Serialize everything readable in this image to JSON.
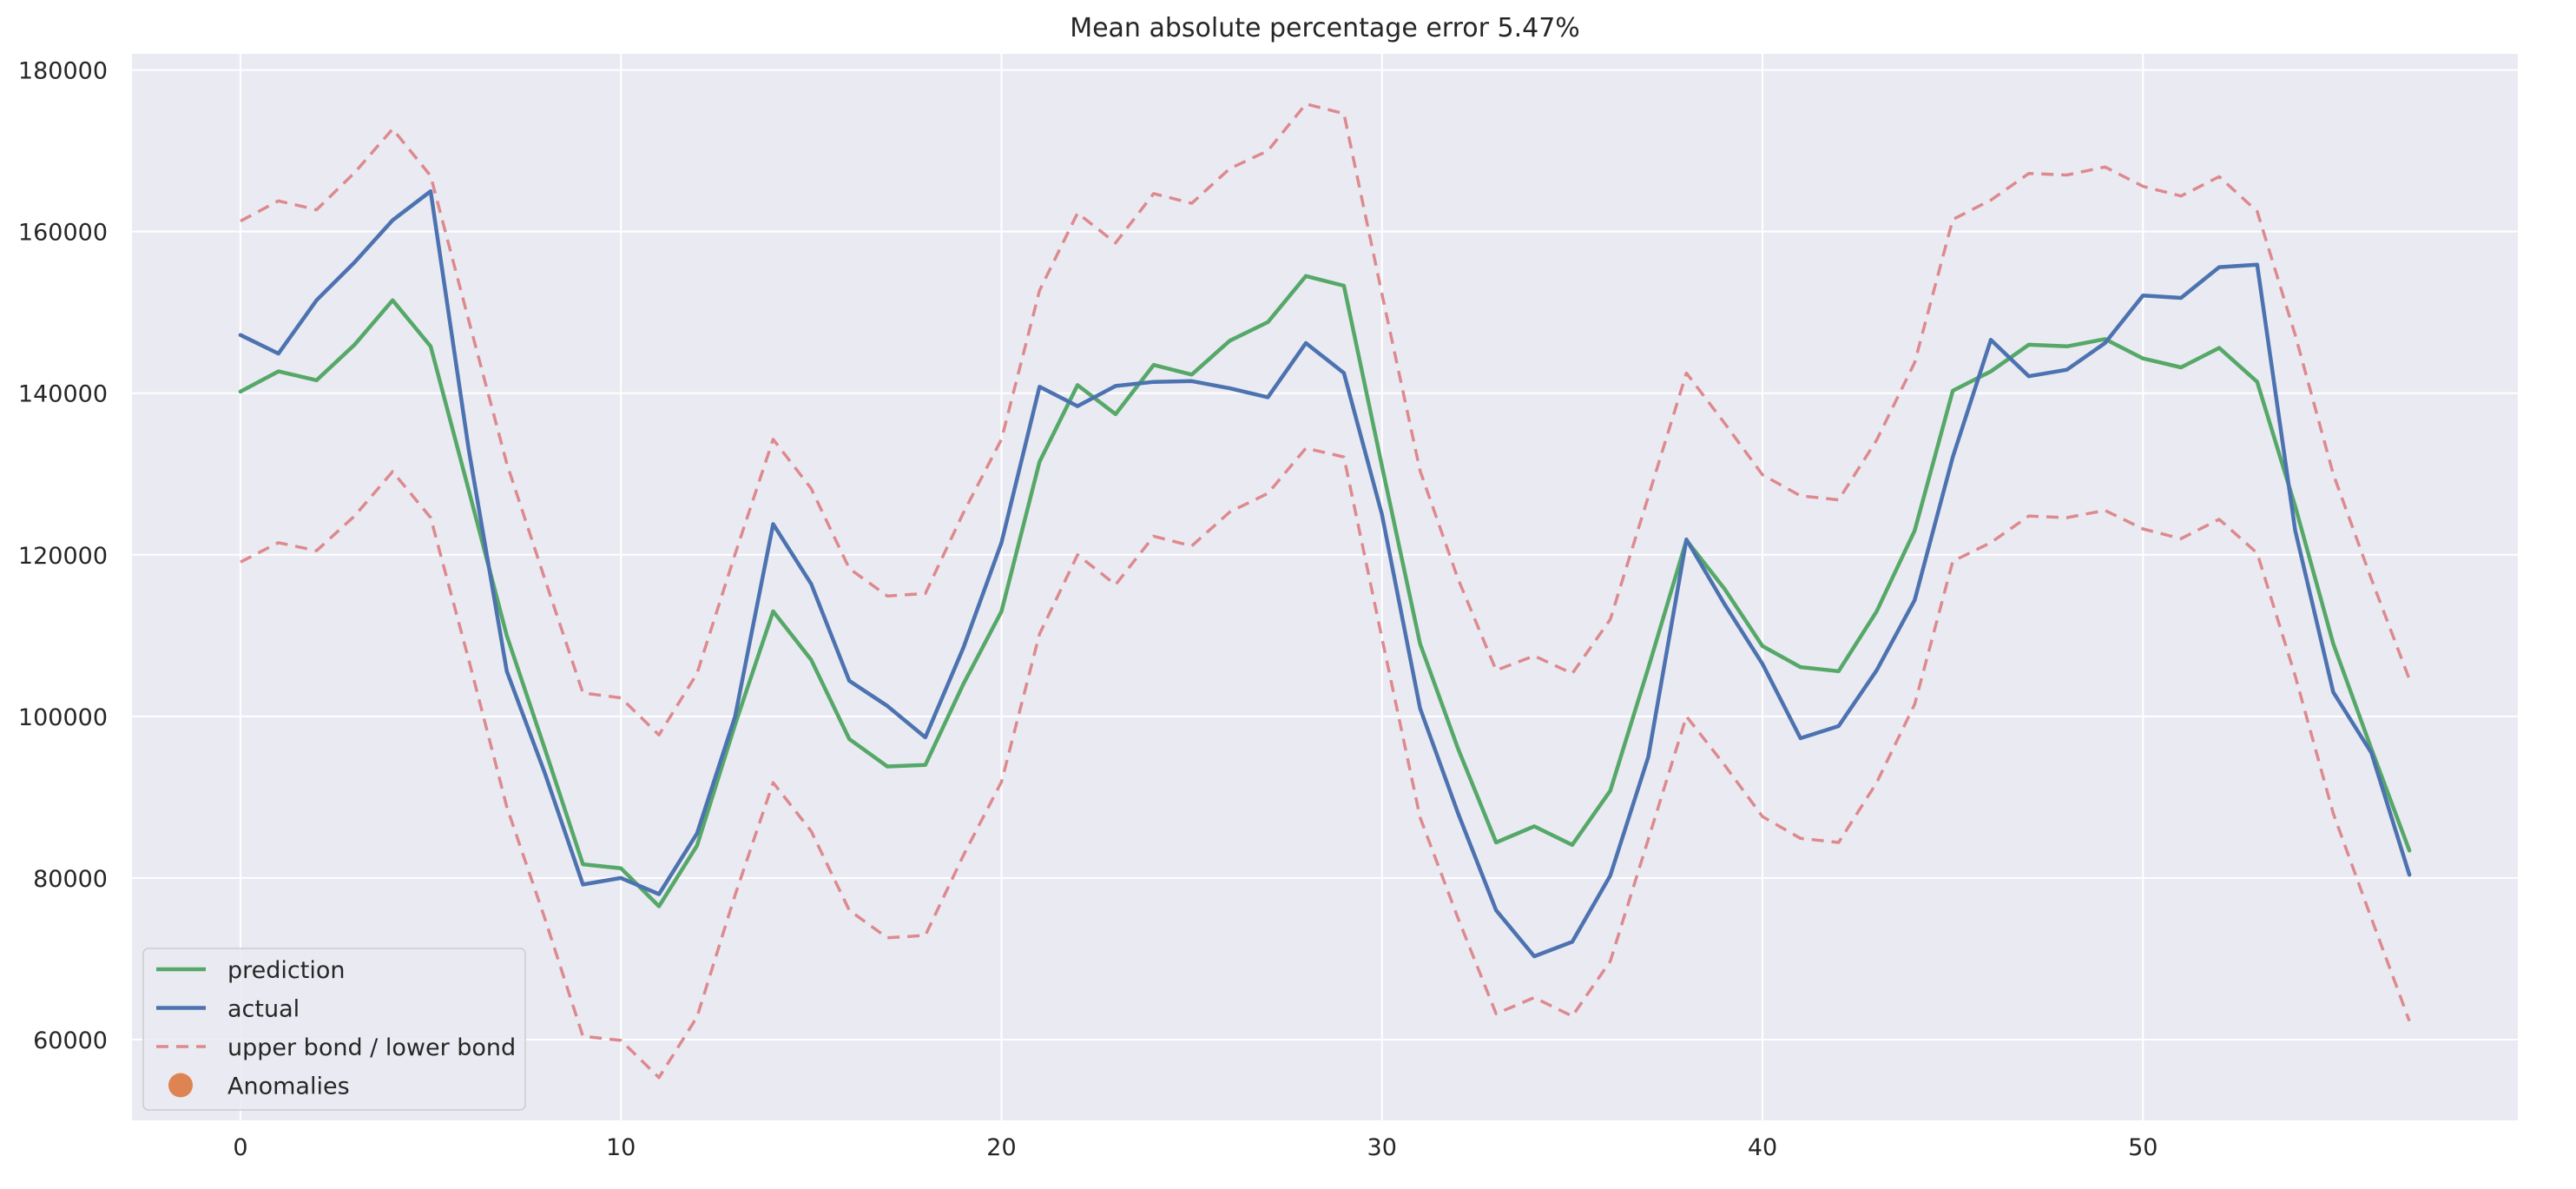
{
  "chart_data": {
    "type": "line",
    "title": "Mean absolute percentage error 5.47%",
    "xlabel": "",
    "ylabel": "",
    "xlim": [
      -2.85,
      59.85
    ],
    "ylim": [
      50000,
      182000
    ],
    "xticks": [
      0,
      10,
      20,
      30,
      40,
      50
    ],
    "yticks": [
      60000,
      80000,
      100000,
      120000,
      140000,
      160000,
      180000
    ],
    "grid": true,
    "legend_position": "lower-left",
    "x": [
      0,
      1,
      2,
      3,
      4,
      5,
      6,
      7,
      8,
      9,
      10,
      11,
      12,
      13,
      14,
      15,
      16,
      17,
      18,
      19,
      20,
      21,
      22,
      23,
      24,
      25,
      26,
      27,
      28,
      29,
      30,
      31,
      32,
      33,
      34,
      35,
      36,
      37,
      38,
      39,
      40,
      41,
      42,
      43,
      44,
      45,
      46,
      47,
      48,
      49,
      50,
      51,
      52,
      53,
      54,
      55,
      56,
      57
    ],
    "series": [
      {
        "name": "prediction",
        "color": "#55a868",
        "style": "solid",
        "values": [
          140200,
          142700,
          141600,
          146000,
          151500,
          145800,
          128000,
          110000,
          96000,
          81700,
          81200,
          76500,
          84000,
          99000,
          113000,
          107000,
          97200,
          93800,
          94000,
          104000,
          113000,
          131500,
          141000,
          137400,
          143500,
          142300,
          146500,
          148800,
          154500,
          153300,
          131000,
          109000,
          96000,
          84400,
          86400,
          84100,
          90800,
          106000,
          121800,
          115800,
          108700,
          106100,
          105600,
          113000,
          123000,
          140300,
          142700,
          146000,
          145800,
          146700,
          144300,
          143200,
          145600,
          141400,
          126000,
          109000,
          96000,
          83400
        ]
      },
      {
        "name": "actual",
        "color": "#4c72b0",
        "style": "solid",
        "values": [
          147200,
          144900,
          151500,
          156200,
          161400,
          165000,
          133000,
          105600,
          93000,
          79200,
          80000,
          78000,
          85500,
          100000,
          123800,
          116400,
          104400,
          101300,
          97400,
          108500,
          121500,
          140800,
          138400,
          140900,
          141400,
          141500,
          140600,
          139500,
          146200,
          142500,
          125000,
          101000,
          88000,
          76000,
          70300,
          72100,
          80300,
          95000,
          121900,
          113900,
          106500,
          97300,
          98800,
          105700,
          114400,
          132100,
          146600,
          142100,
          142900,
          146200,
          152100,
          151800,
          155600,
          155900,
          123000,
          103000,
          95500,
          80400
        ]
      },
      {
        "name": "upper bond / lower bond",
        "color": "#dd8a8e",
        "style": "dashed",
        "upper": [
          161300,
          163800,
          162700,
          167300,
          172700,
          166900,
          149000,
          131300,
          117000,
          102900,
          102300,
          97700,
          105300,
          120100,
          134300,
          128200,
          118300,
          114900,
          115200,
          125200,
          134300,
          152700,
          162300,
          158600,
          164700,
          163500,
          167800,
          170000,
          175800,
          174600,
          152300,
          130400,
          117000,
          105700,
          107500,
          105300,
          112000,
          127200,
          142500,
          136300,
          129900,
          127300,
          126800,
          134200,
          143800,
          161500,
          163900,
          167200,
          167000,
          168000,
          165600,
          164400,
          166800,
          162500,
          147200,
          130000,
          117000,
          104600
        ],
        "lower": [
          119100,
          121500,
          120500,
          124800,
          130300,
          124600,
          107000,
          88800,
          75000,
          60400,
          59900,
          55300,
          62800,
          77900,
          91800,
          85800,
          76000,
          72600,
          72900,
          82800,
          91900,
          110200,
          120000,
          116300,
          122300,
          121100,
          125300,
          127600,
          133200,
          132100,
          109700,
          87500,
          75000,
          63200,
          65200,
          62900,
          69700,
          84800,
          100000,
          94000,
          87600,
          84900,
          84400,
          91800,
          101500,
          119200,
          121500,
          124800,
          124600,
          125500,
          123200,
          122000,
          124400,
          120200,
          105000,
          88000,
          75000,
          62300
        ]
      },
      {
        "name": "Anomalies",
        "color": "#dd8452",
        "style": "marker",
        "x": [],
        "values": []
      }
    ]
  }
}
